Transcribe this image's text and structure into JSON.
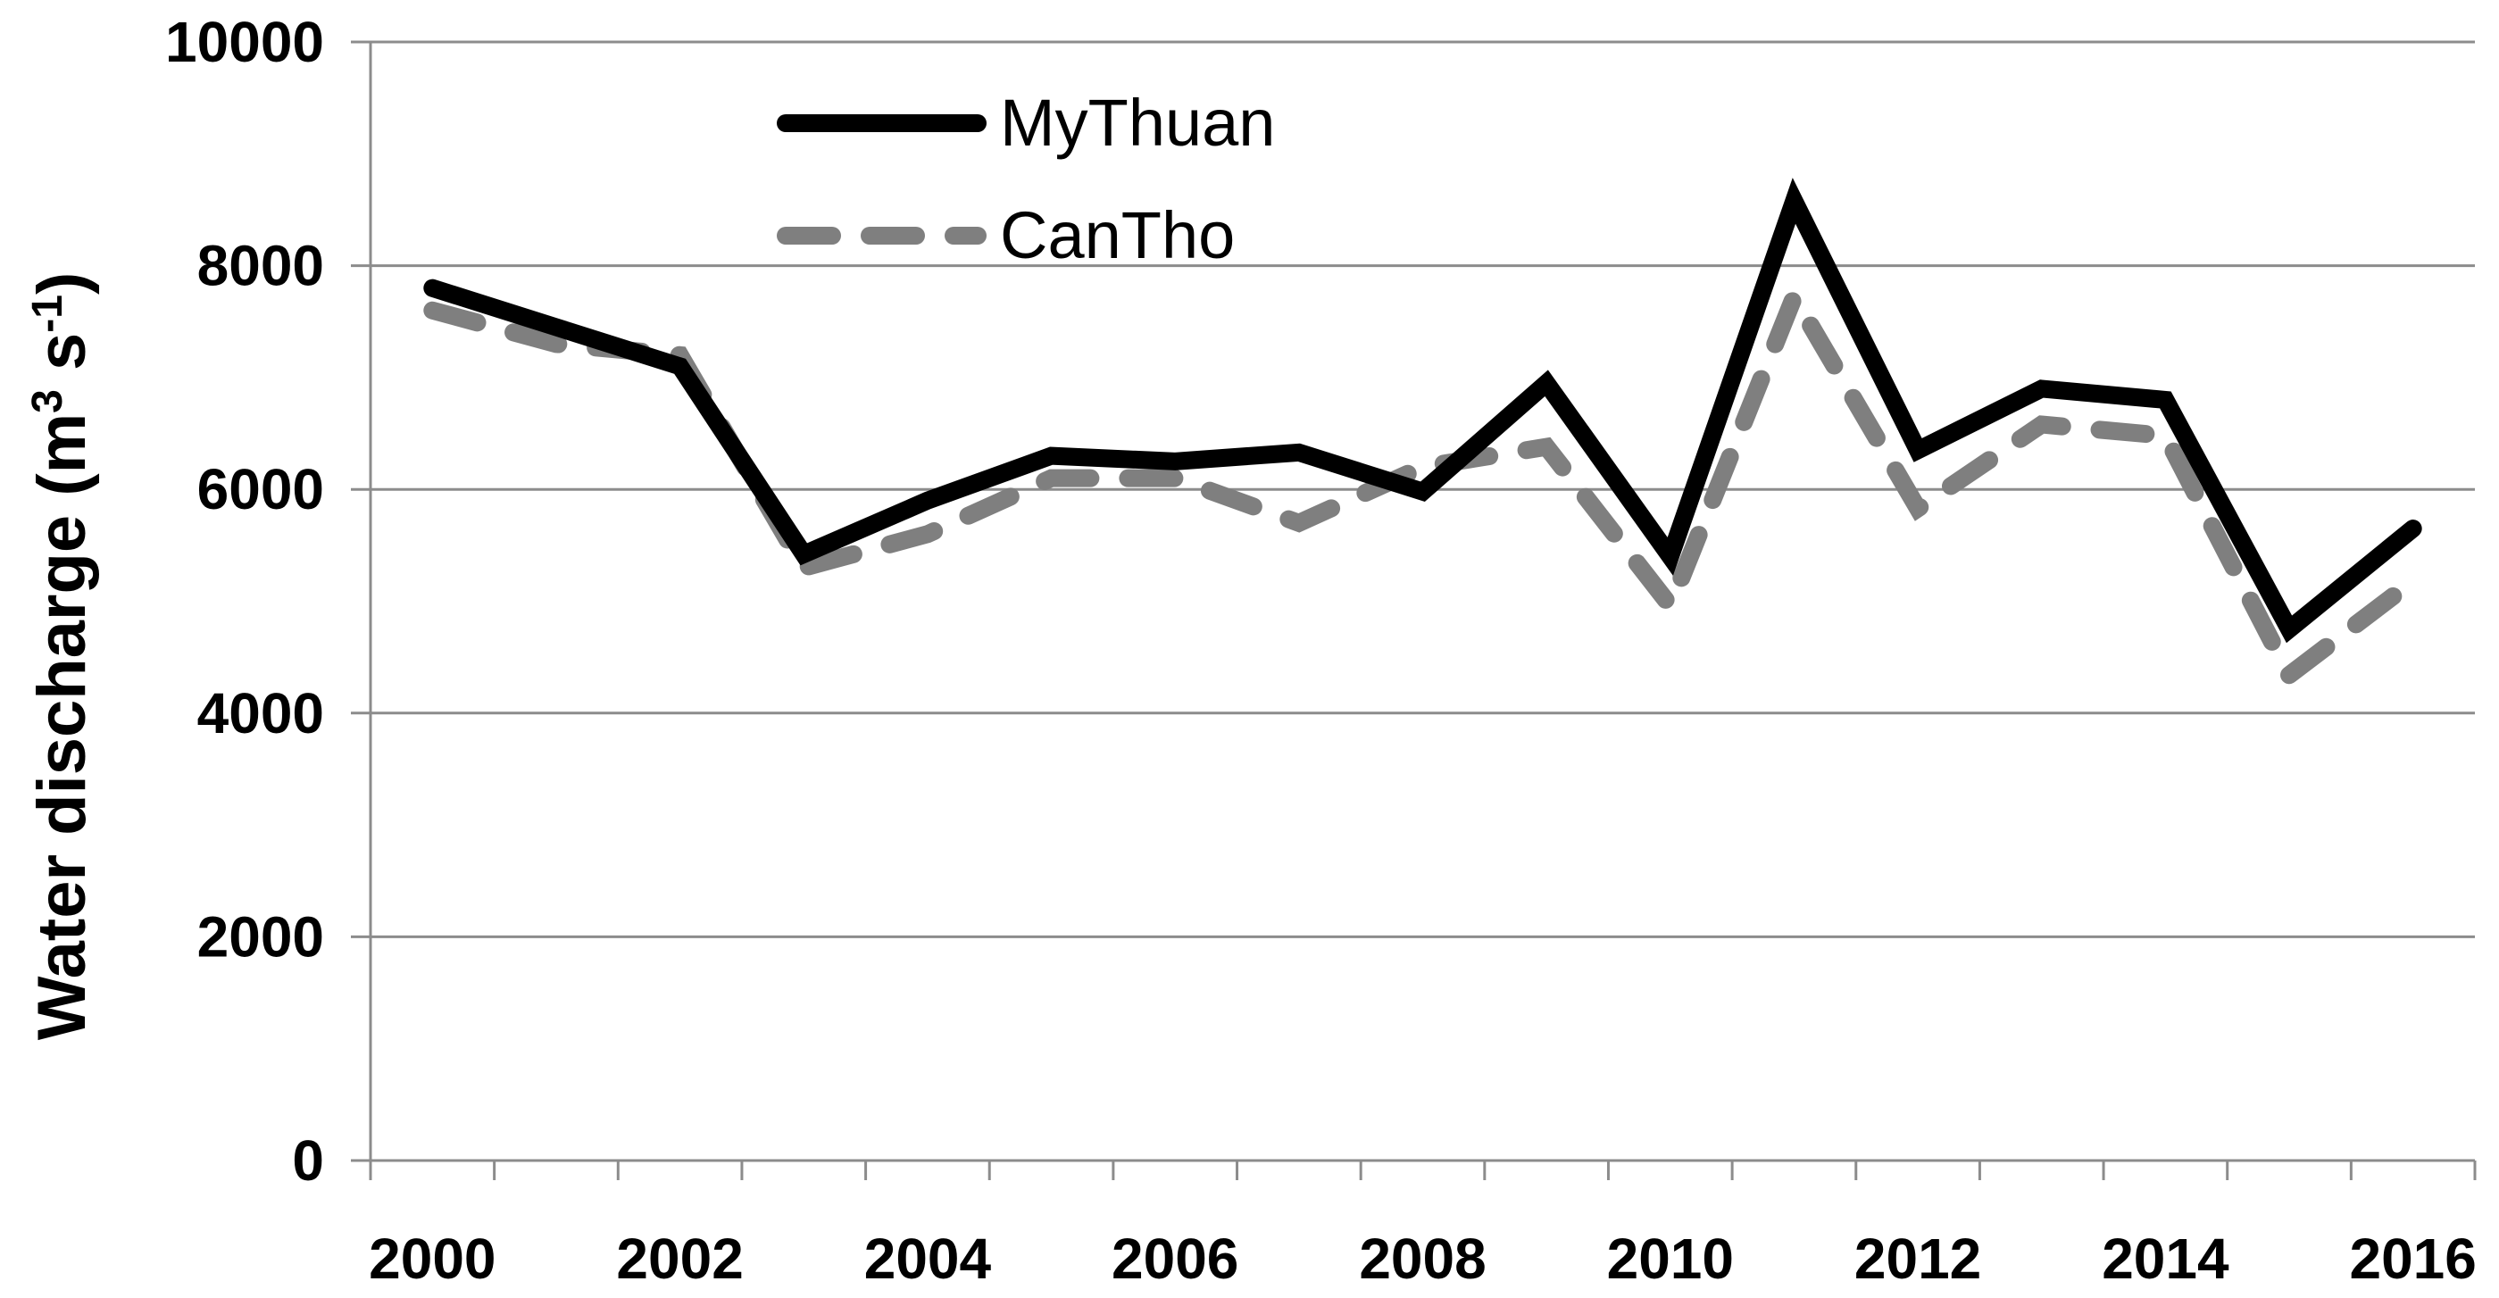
{
  "chart_data": {
    "type": "line",
    "x": [
      2000,
      2001,
      2002,
      2003,
      2004,
      2005,
      2006,
      2007,
      2008,
      2009,
      2010,
      2011,
      2012,
      2013,
      2014,
      2015,
      2016
    ],
    "series": [
      {
        "name": "MyThuan",
        "values": [
          7800,
          7450,
          7100,
          5420,
          5900,
          6300,
          6250,
          6330,
          5980,
          6950,
          5400,
          8580,
          6350,
          6900,
          6800,
          4750,
          5650
        ]
      },
      {
        "name": "CanTho",
        "values": [
          7600,
          7300,
          7200,
          5300,
          5600,
          6100,
          6100,
          5700,
          6200,
          6380,
          4960,
          7720,
          5830,
          6580,
          6480,
          4340,
          5180
        ]
      }
    ],
    "ylabel": "Water discharge (m",
    "ylabel_sup1": "3",
    "ylabel_mid": " s",
    "ylabel_sup2": "-1",
    "ylabel_end": ")",
    "xlabel": "",
    "ylim": [
      0,
      10000
    ],
    "xlim": [
      2000,
      2017
    ],
    "yticks": [
      "0",
      "2000",
      "4000",
      "6000",
      "8000",
      "10000"
    ],
    "xticks": [
      "2000",
      "2002",
      "2004",
      "2006",
      "2008",
      "2010",
      "2012",
      "2014",
      "2016"
    ],
    "grid": true,
    "legend_position": "top-left",
    "colors": {
      "MyThuan": "#000000",
      "CanTho": "#7f7f7f",
      "grid": "#8c8c8c",
      "axis": "#8c8c8c"
    }
  }
}
